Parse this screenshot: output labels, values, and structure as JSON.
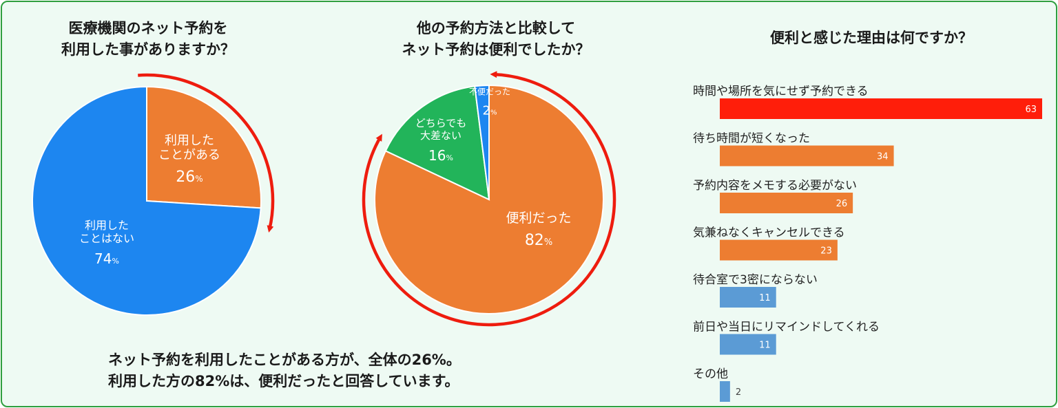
{
  "pie1": {
    "title_line1": "医療機関のネット予約を",
    "title_line2": "利用した事がありますか？",
    "slices": [
      {
        "label_lines": [
          "利用した",
          "ことがある"
        ],
        "value": 26,
        "unit": "%",
        "color": "#ed7d31"
      },
      {
        "label_lines": [
          "利用した",
          "ことはない"
        ],
        "value": 74,
        "unit": "%",
        "color": "#1d86f0"
      }
    ]
  },
  "pie2": {
    "title_line1": "他の予約方法と比較して",
    "title_line2": "ネット予約は便利でしたか？",
    "slices": [
      {
        "label_lines": [
          "便利だった"
        ],
        "value": 82,
        "unit": "%",
        "color": "#ed7d31"
      },
      {
        "label_lines": [
          "どちらでも",
          "大差ない"
        ],
        "value": 16,
        "unit": "%",
        "color": "#22b45a"
      },
      {
        "label_lines": [
          "不便だった"
        ],
        "value": 2,
        "unit": "%",
        "color": "#1d86f0"
      }
    ]
  },
  "bar": {
    "title": "便利と感じた理由は何ですか？"
  },
  "chart_data": [
    {
      "type": "pie",
      "title": "医療機関のネット予約を利用した事がありますか？",
      "categories": [
        "利用したことがある",
        "利用したことはない"
      ],
      "values": [
        26,
        74
      ]
    },
    {
      "type": "pie",
      "title": "他の予約方法と比較してネット予約は便利でしたか？",
      "categories": [
        "便利だった",
        "どちらでも大差ない",
        "不便だった"
      ],
      "values": [
        82,
        16,
        2
      ]
    },
    {
      "type": "bar",
      "orientation": "horizontal",
      "title": "便利と感じた理由は何ですか？",
      "categories": [
        "時間や場所を気にせず予約できる",
        "待ち時間が短くなった",
        "予約内容をメモする必要がない",
        "気兼ねなくキャンセルできる",
        "待合室で3密にならない",
        "前日や当日にリマインドしてくれる",
        "その他"
      ],
      "values": [
        63,
        34,
        26,
        23,
        11,
        11,
        2
      ],
      "colors": [
        "#ff1e0a",
        "#ed7d31",
        "#ed7d31",
        "#ed7d31",
        "#5b9bd5",
        "#5b9bd5",
        "#5b9bd5"
      ],
      "xlim": [
        0,
        63
      ]
    }
  ],
  "summary": {
    "line1": "ネット予約を利用したことがある方が、全体の26%。",
    "line2": "利用した方の82%は、便利だったと回答しています。"
  }
}
